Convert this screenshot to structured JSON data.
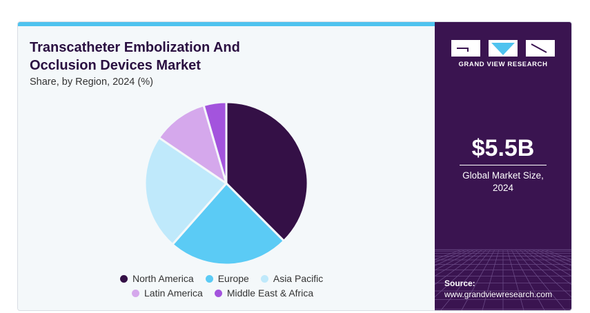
{
  "title_lines": [
    "Transcatheter Embolization And",
    "Occlusion Devices Market"
  ],
  "subtitle": "Share, by Region, 2024 (%)",
  "chart_data": {
    "type": "pie",
    "title": "Transcatheter Embolization And Occlusion Devices Market",
    "subtitle": "Share, by Region, 2024 (%)",
    "categories": [
      "North America",
      "Europe",
      "Asia Pacific",
      "Latin America",
      "Middle East & Africa"
    ],
    "values": [
      37.5,
      24.0,
      23.0,
      11.0,
      4.5
    ],
    "colors": [
      "#341046",
      "#5bcbf5",
      "#bfe9fb",
      "#d5a8ec",
      "#a354dd"
    ],
    "legend_placement": "bottom"
  },
  "legend_rows": [
    [
      "North America",
      "Europe",
      "Asia Pacific"
    ],
    [
      "Latin America",
      "Middle East & Africa"
    ]
  ],
  "brand": {
    "name": "GRAND VIEW RESEARCH",
    "logo_icon": "gvr-logo-icon"
  },
  "market": {
    "value": "$5.5B",
    "label_line1": "Global Market Size,",
    "label_line2": "2024"
  },
  "source": {
    "label": "Source:",
    "url": "www.grandviewresearch.com"
  },
  "colors": {
    "panel_bg": "#3a1450",
    "accent": "#4fc3ef",
    "title": "#2a0f41"
  }
}
